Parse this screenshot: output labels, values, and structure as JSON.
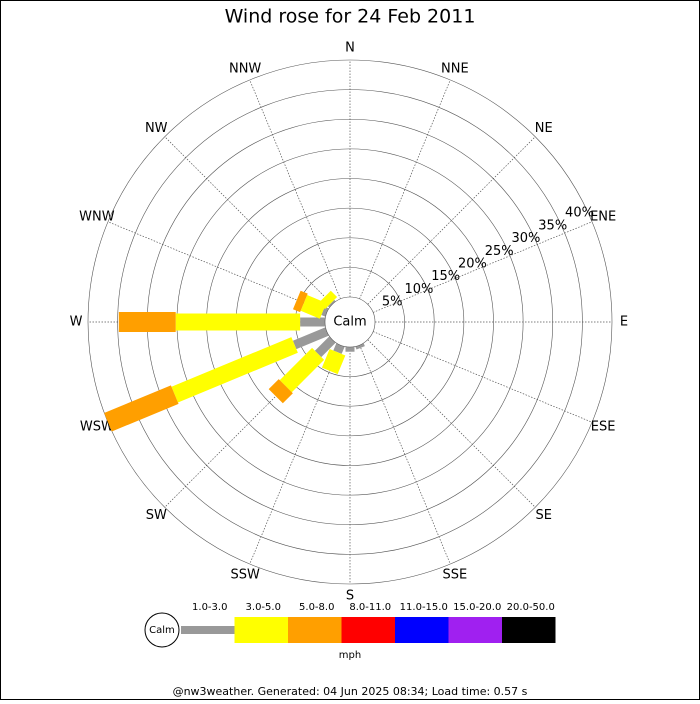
{
  "chart_data": {
    "type": "windrose",
    "title": "Wind rose for 24 Feb 2011",
    "directions": [
      "N",
      "NNE",
      "NE",
      "ENE",
      "E",
      "ESE",
      "SE",
      "SSE",
      "S",
      "SSW",
      "SW",
      "WSW",
      "W",
      "WNW",
      "NW",
      "NNW"
    ],
    "calm_label": "Calm",
    "units": "mph",
    "rlim": [
      0,
      40
    ],
    "rticks": [
      {
        "value": 5,
        "label": "5%"
      },
      {
        "value": 10,
        "label": "10%"
      },
      {
        "value": 15,
        "label": "15%"
      },
      {
        "value": 20,
        "label": "20%"
      },
      {
        "value": 25,
        "label": "25%"
      },
      {
        "value": 30,
        "label": "30%"
      },
      {
        "value": 35,
        "label": "35%"
      },
      {
        "value": 40,
        "label": "40%"
      }
    ],
    "series": [
      {
        "name": "1.0-3.0",
        "color": "#999999",
        "values": [
          0,
          0,
          0,
          0,
          0,
          0,
          0,
          0.5,
          0.8,
          1.3,
          3.4,
          5.9,
          4.2,
          0.7,
          0.3,
          0
        ]
      },
      {
        "name": "3.0-5.0",
        "color": "#ffff00",
        "values": [
          0,
          0,
          0,
          0,
          0,
          0,
          0,
          0,
          0,
          3.4,
          7.7,
          21.9,
          21,
          3.5,
          1.5,
          0
        ]
      },
      {
        "name": "5.0-8.0",
        "color": "#ff9f00",
        "values": [
          0,
          0,
          0,
          0,
          0,
          0,
          0,
          0,
          0,
          0,
          2.4,
          12.2,
          9.6,
          1.3,
          0,
          0
        ]
      },
      {
        "name": "8.0-11.0",
        "color": "#ff0000",
        "values": [
          0,
          0,
          0,
          0,
          0,
          0,
          0,
          0,
          0,
          0,
          0,
          0,
          0,
          0,
          0,
          0
        ]
      },
      {
        "name": "11.0-15.0",
        "color": "#0000ff",
        "values": [
          0,
          0,
          0,
          0,
          0,
          0,
          0,
          0,
          0,
          0,
          0,
          0,
          0,
          0,
          0,
          0
        ]
      },
      {
        "name": "15.0-20.0",
        "color": "#a020f0",
        "values": [
          0,
          0,
          0,
          0,
          0,
          0,
          0,
          0,
          0,
          0,
          0,
          0,
          0,
          0,
          0,
          0
        ]
      },
      {
        "name": "20.0-50.0",
        "color": "#000000",
        "values": [
          0,
          0,
          0,
          0,
          0,
          0,
          0,
          0,
          0,
          0,
          0,
          0,
          0,
          0,
          0,
          0
        ]
      }
    ],
    "footer": "@nw3weather. Generated: 04 Jun 2025 08:34; Load time: 0.57 s"
  }
}
